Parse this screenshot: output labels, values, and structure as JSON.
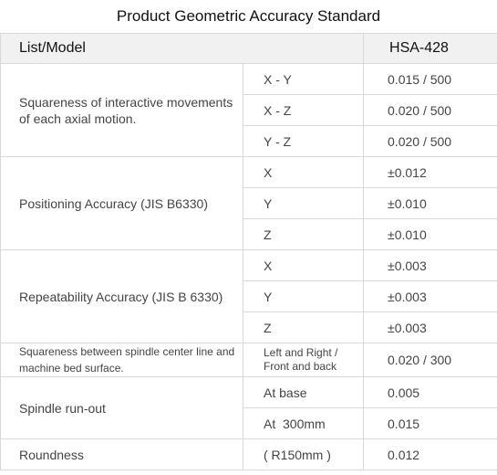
{
  "title": "Product Geometric Accuracy Standard",
  "header": {
    "list_model": "List/Model",
    "model": "HSA-428"
  },
  "rows": [
    {
      "label": "Squareness of interactive movements of each axial motion.",
      "items": [
        {
          "sub": "X - Y",
          "value": "0.015 / 500"
        },
        {
          "sub": "X - Z",
          "value": "0.020 / 500"
        },
        {
          "sub": "Y - Z",
          "value": "0.020 / 500"
        }
      ]
    },
    {
      "label": "Positioning Accuracy (JIS B6330)",
      "items": [
        {
          "sub": "X",
          "value": "±0.012"
        },
        {
          "sub": "Y",
          "value": "±0.010"
        },
        {
          "sub": "Z",
          "value": "±0.010"
        }
      ]
    },
    {
      "label": "Repeatability Accuracy (JIS B 6330)",
      "items": [
        {
          "sub": "X",
          "value": "±0.003"
        },
        {
          "sub": "Y",
          "value": "±0.003"
        },
        {
          "sub": "Z",
          "value": "±0.003"
        }
      ]
    },
    {
      "label": "Squareness between spindle center line and machine bed surface.",
      "items": [
        {
          "sub": "Left and Right / Front and back",
          "value": "0.020 / 300"
        }
      ]
    },
    {
      "label": "Spindle run-out",
      "items": [
        {
          "sub": "At base",
          "value": "0.005"
        },
        {
          "sub": "At  300mm",
          "value": "0.015"
        }
      ]
    },
    {
      "label": "Roundness",
      "items": [
        {
          "sub": "( R150mm )",
          "value": "0.012"
        }
      ]
    }
  ]
}
